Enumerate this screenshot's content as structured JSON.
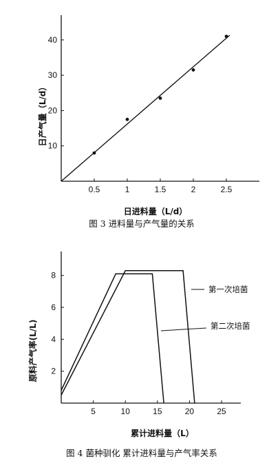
{
  "chart_data": [
    {
      "type": "scatter",
      "caption": "图 3  进料量与产气量的关系",
      "xlabel": "日进料量（L/d）",
      "ylabel": "日产气量（L/d）",
      "xlim": [
        0,
        3.0
      ],
      "ylim": [
        0,
        47
      ],
      "xticks": [
        0.5,
        1,
        1.5,
        2,
        2.5
      ],
      "xtick_labels": [
        "0.5",
        "1",
        "1.5",
        "2",
        "2.5"
      ],
      "yticks": [
        10,
        20,
        30,
        40
      ],
      "ytick_labels": [
        "10",
        "20",
        "30",
        "40"
      ],
      "points": [
        {
          "x": 0.5,
          "y": 8
        },
        {
          "x": 1.0,
          "y": 17.5
        },
        {
          "x": 1.5,
          "y": 23.5
        },
        {
          "x": 2.0,
          "y": 31.5
        },
        {
          "x": 2.5,
          "y": 41
        }
      ],
      "fit_line": [
        {
          "x": 0,
          "y": 0
        },
        {
          "x": 2.55,
          "y": 41.3
        }
      ],
      "grid": false
    },
    {
      "type": "line",
      "caption": "图 4  菌种驯化  累计进料量与产气率关系",
      "xlabel": "累计进料量（L）",
      "ylabel": "原料产气率(L/L)",
      "xlim": [
        0,
        28
      ],
      "ylim": [
        0,
        9.5
      ],
      "xticks": [
        5,
        10,
        15,
        20,
        25
      ],
      "xtick_labels": [
        "5",
        "10",
        "15",
        "20",
        "25"
      ],
      "yticks": [
        2,
        4,
        6,
        8
      ],
      "ytick_labels": [
        "2",
        "4",
        "6",
        "8"
      ],
      "series": [
        {
          "name": "第一次培菌",
          "points": [
            {
              "x": 0,
              "y": 0.5
            },
            {
              "x": 10.0,
              "y": 8.3
            },
            {
              "x": 19.0,
              "y": 8.3
            },
            {
              "x": 20.8,
              "y": 0
            }
          ]
        },
        {
          "name": "第二次培菌",
          "points": [
            {
              "x": 0,
              "y": 0.8
            },
            {
              "x": 8.5,
              "y": 8.1
            },
            {
              "x": 14.2,
              "y": 8.1
            },
            {
              "x": 16.0,
              "y": 0
            }
          ]
        }
      ],
      "grid": false
    }
  ]
}
